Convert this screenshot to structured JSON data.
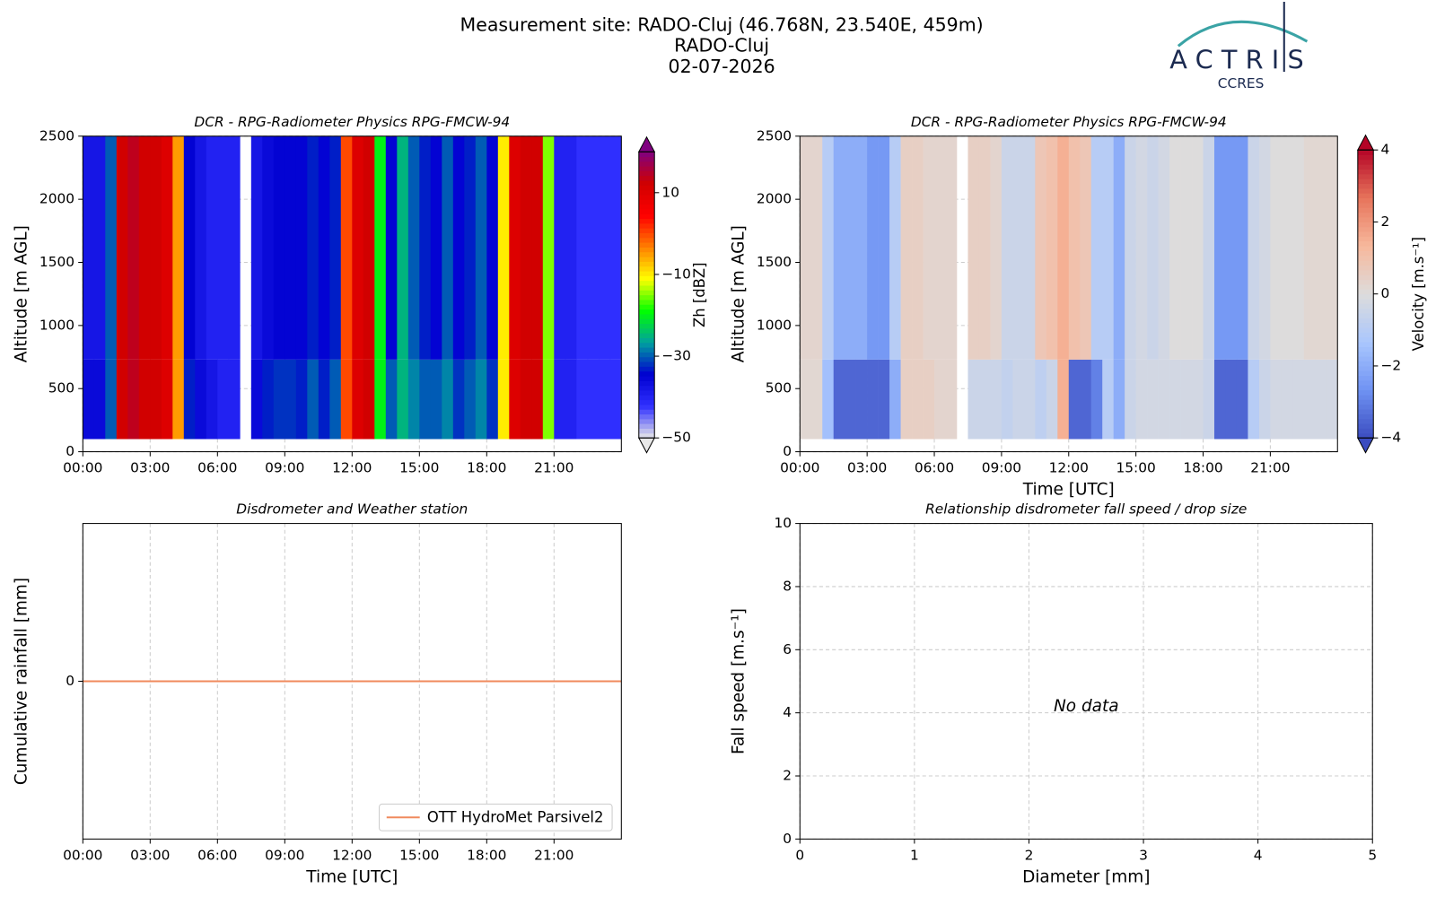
{
  "header": {
    "title_lines": [
      "Measurement site: RADO-Cluj (46.768N, 23.540E, 459m)",
      "RADO-Cluj",
      "02-07-2026"
    ]
  },
  "logo": {
    "name": "ACTRIS",
    "subtitle": "CCRES"
  },
  "chart_data": [
    {
      "type": "heatmap",
      "title": "DCR - RPG-Radiometer Physics RPG-FMCW-94",
      "ylabel": "Altitude [m AGL]",
      "colorbar_label": "Zh [dBZ]",
      "clim": [
        -50,
        20
      ],
      "colormap": [
        "#e8e8e8",
        "#3030ff",
        "#0000d0",
        "#00a0a0",
        "#00ff00",
        "#ffff00",
        "#ff8000",
        "#ff0000",
        "#d00000",
        "#800080"
      ],
      "cticks": [
        {
          "value": 10,
          "label": "10"
        },
        {
          "value": -10,
          "label": "−10"
        },
        {
          "value": -30,
          "label": "−30"
        },
        {
          "value": -50,
          "label": "−50"
        }
      ],
      "x_edges": [
        0,
        0.5,
        1,
        1.5,
        2,
        2.5,
        3,
        3.5,
        4,
        4.5,
        5,
        5.5,
        6,
        6.5,
        7,
        7.5,
        8,
        8.5,
        9,
        9.5,
        10,
        10.5,
        11,
        11.5,
        12,
        12.5,
        13,
        13.5,
        14,
        14.5,
        15,
        15.5,
        16,
        16.5,
        17,
        17.5,
        18,
        18.5,
        19,
        19.5,
        20,
        20.5,
        21,
        21.5,
        22,
        22.5,
        23,
        23.5,
        24
      ],
      "y_edges": [
        100,
        730,
        2500
      ],
      "z": [
        [
          -36,
          -36,
          -30,
          12,
          14,
          12,
          12,
          10,
          -5,
          -33,
          -36,
          -38,
          -40,
          -40,
          null,
          -36,
          -33,
          -32,
          -32,
          -33,
          -30,
          -33,
          -30,
          0,
          10,
          12,
          -20,
          -30,
          -25,
          -28,
          -30,
          -30,
          -28,
          -32,
          -30,
          -28,
          -32,
          -10,
          10,
          12,
          12,
          -15,
          -40,
          -40,
          -42,
          -42,
          -42,
          -42
        ],
        [
          -38,
          -38,
          -30,
          12,
          14,
          12,
          12,
          10,
          -5,
          -35,
          -38,
          -40,
          -40,
          -40,
          null,
          -38,
          -36,
          -35,
          -35,
          -35,
          -33,
          -35,
          -33,
          0,
          10,
          12,
          -20,
          -35,
          -25,
          -30,
          -33,
          -35,
          -30,
          -35,
          -33,
          -30,
          -35,
          -10,
          10,
          12,
          12,
          -15,
          -40,
          -40,
          -42,
          -42,
          -42,
          -42
        ]
      ],
      "xlim": [
        0,
        24
      ],
      "ylim": [
        0,
        2500
      ],
      "xticks": [
        {
          "value": 0,
          "label": "00:00"
        },
        {
          "value": 3,
          "label": "03:00"
        },
        {
          "value": 6,
          "label": "06:00"
        },
        {
          "value": 9,
          "label": "09:00"
        },
        {
          "value": 12,
          "label": "12:00"
        },
        {
          "value": 15,
          "label": "15:00"
        },
        {
          "value": 18,
          "label": "18:00"
        },
        {
          "value": 21,
          "label": "21:00"
        }
      ],
      "yticks": [
        0,
        500,
        1000,
        1500,
        2000,
        2500
      ],
      "grid": true
    },
    {
      "type": "heatmap",
      "title": "DCR - RPG-Radiometer Physics RPG-FMCW-94",
      "ylabel": "Altitude [m AGL]",
      "xlabel": "Time [UTC]",
      "colorbar_label": "Velocity [m.s⁻¹]",
      "clim": [
        -4,
        4
      ],
      "colormap": [
        "#3b4cc0",
        "#6f92f3",
        "#aac7fd",
        "#dddcdc",
        "#f7b89c",
        "#e7745b",
        "#b40426"
      ],
      "cticks": [
        {
          "value": 4,
          "label": "4"
        },
        {
          "value": 2,
          "label": "2"
        },
        {
          "value": 0,
          "label": "0"
        },
        {
          "value": -2,
          "label": "−2"
        },
        {
          "value": -4,
          "label": "−4"
        }
      ],
      "x_edges": [
        0,
        0.5,
        1,
        1.5,
        2,
        2.5,
        3,
        3.5,
        4,
        4.5,
        5,
        5.5,
        6,
        6.5,
        7,
        7.5,
        8,
        8.5,
        9,
        9.5,
        10,
        10.5,
        11,
        11.5,
        12,
        12.5,
        13,
        13.5,
        14,
        14.5,
        15,
        15.5,
        16,
        16.5,
        17,
        17.5,
        18,
        18.5,
        19,
        19.5,
        20,
        20.5,
        21,
        21.5,
        22,
        22.5,
        23,
        23.5,
        24
      ],
      "y_edges": [
        100,
        730,
        2500
      ],
      "z": [
        [
          0.2,
          0.2,
          -1.5,
          -3.5,
          -3.5,
          -3.5,
          -3.5,
          -3.5,
          -2,
          0.5,
          0.5,
          0.5,
          0.3,
          0.3,
          null,
          -0.5,
          -0.5,
          -0.5,
          -0.7,
          -0.5,
          -0.5,
          -0.8,
          -0.5,
          1.5,
          -3.5,
          -3.5,
          -3,
          -1,
          -2,
          -0.5,
          -0.3,
          -0.3,
          -0.3,
          -0.3,
          -0.3,
          -0.3,
          -0.5,
          -3.5,
          -3.5,
          -3.5,
          -1,
          -0.5,
          -0.3,
          -0.3,
          -0.3,
          -0.3,
          -0.3,
          -0.3
        ],
        [
          0.3,
          0.3,
          -1,
          -2,
          -2,
          -2,
          -2.5,
          -2.5,
          -1,
          0.5,
          0.5,
          0.3,
          0.3,
          0.3,
          null,
          0.5,
          0.5,
          0.3,
          -0.5,
          -0.5,
          -0.5,
          0.8,
          1,
          1.5,
          1,
          0.8,
          -1,
          -1,
          -2,
          -0.5,
          -0.3,
          -0.5,
          -0.3,
          0,
          0,
          0,
          -0.5,
          -2.5,
          -2.5,
          -2.5,
          -0.5,
          -0.3,
          0,
          0,
          0,
          0.2,
          0.2,
          0.2
        ]
      ],
      "xlim": [
        0,
        24
      ],
      "ylim": [
        0,
        2500
      ],
      "xticks": [
        {
          "value": 0,
          "label": "00:00"
        },
        {
          "value": 3,
          "label": "03:00"
        },
        {
          "value": 6,
          "label": "06:00"
        },
        {
          "value": 9,
          "label": "09:00"
        },
        {
          "value": 12,
          "label": "12:00"
        },
        {
          "value": 15,
          "label": "15:00"
        },
        {
          "value": 18,
          "label": "18:00"
        },
        {
          "value": 21,
          "label": "21:00"
        }
      ],
      "yticks": [
        0,
        500,
        1000,
        1500,
        2000,
        2500
      ],
      "grid": true
    },
    {
      "type": "line",
      "title": "Disdrometer and Weather station",
      "xlabel": "Time [UTC]",
      "ylabel": "Cumulative rainfall [mm]",
      "series": [
        {
          "name": "OTT HydroMet Parsivel2",
          "color": "#f08a5d",
          "x": [
            0,
            24
          ],
          "values": [
            0,
            0
          ]
        }
      ],
      "xlim": [
        0,
        24
      ],
      "ylim": [
        -1,
        1
      ],
      "xticks": [
        {
          "value": 0,
          "label": "00:00"
        },
        {
          "value": 3,
          "label": "03:00"
        },
        {
          "value": 6,
          "label": "06:00"
        },
        {
          "value": 9,
          "label": "09:00"
        },
        {
          "value": 12,
          "label": "12:00"
        },
        {
          "value": 15,
          "label": "15:00"
        },
        {
          "value": 18,
          "label": "18:00"
        },
        {
          "value": 21,
          "label": "21:00"
        }
      ],
      "yticks": [
        0
      ],
      "grid": true,
      "legend": "lower right"
    },
    {
      "type": "scatter",
      "title": "Relationship disdrometer fall speed / drop size",
      "xlabel": "Diameter [mm]",
      "ylabel": "Fall speed [m.s⁻¹]",
      "annotation": "No data",
      "x": [],
      "values": [],
      "xlim": [
        0,
        5
      ],
      "ylim": [
        0,
        10
      ],
      "xticks": [
        0,
        1,
        2,
        3,
        4,
        5
      ],
      "yticks": [
        0,
        2,
        4,
        6,
        8,
        10
      ],
      "grid": true
    }
  ]
}
